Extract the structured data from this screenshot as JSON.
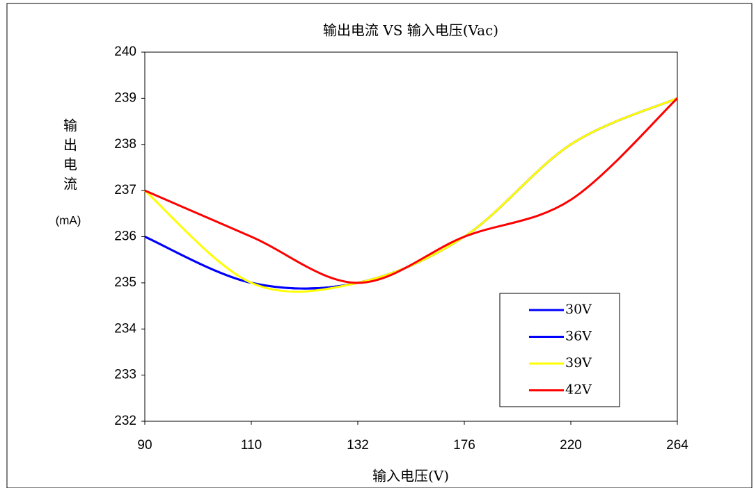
{
  "chart_data": {
    "type": "line",
    "title": "输出电流 VS 输入电压(Vac)",
    "x_label": "输入电压(V)",
    "y_label": "输出电流",
    "y_unit": "(mA)",
    "categories": [
      "90",
      "110",
      "132",
      "176",
      "220",
      "264"
    ],
    "series": [
      {
        "name": "30V",
        "color": "#0000ff",
        "values": [
          236,
          235,
          235,
          236,
          238,
          239
        ]
      },
      {
        "name": "36V",
        "color": "#0000ff",
        "values": [
          236,
          235,
          235,
          236,
          238,
          239
        ]
      },
      {
        "name": "39V",
        "color": "#ffff00",
        "values": [
          237,
          235,
          235,
          236,
          238,
          239
        ]
      },
      {
        "name": "42V",
        "color": "#ff0000",
        "values": [
          237,
          236,
          235,
          236,
          236.8,
          239
        ]
      }
    ],
    "ylim": [
      232,
      240
    ],
    "yticks": [
      232,
      233,
      234,
      235,
      236,
      237,
      238,
      239,
      240
    ],
    "grid": false,
    "smooth": true,
    "legend": "lower right"
  }
}
